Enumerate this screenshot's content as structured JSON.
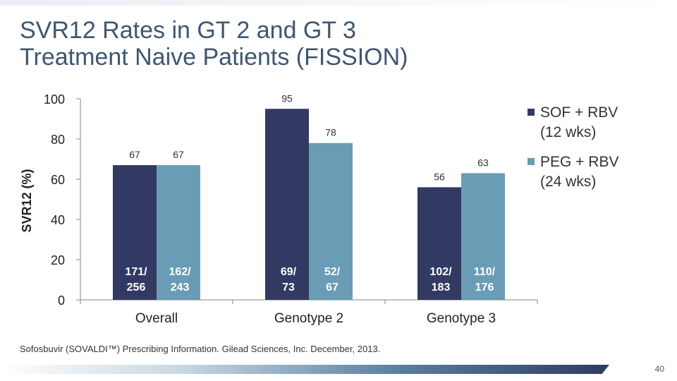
{
  "slide": {
    "title_line1": "SVR12 Rates in GT 2 and GT 3",
    "title_line2": "Treatment Naive Patients (FISSION)",
    "citation": "Sofosbuvir (SOVALDI™) Prescribing Information. Gilead Sciences, Inc. December, 2013.",
    "page_number": "40"
  },
  "chart_data": {
    "type": "bar",
    "categories": [
      "Overall",
      "Genotype 2",
      "Genotype 3"
    ],
    "series": [
      {
        "name": "SOF + RBV (12 wks)",
        "legend_lines": [
          "SOF + RBV",
          "(12 wks)"
        ],
        "color": "#323a64",
        "values": [
          67,
          95,
          56
        ],
        "fraction_labels": [
          [
            "171/",
            "256"
          ],
          [
            "69/",
            "73"
          ],
          [
            "102/",
            "183"
          ]
        ]
      },
      {
        "name": "PEG + RBV (24 wks)",
        "legend_lines": [
          "PEG + RBV",
          "(24 wks)"
        ],
        "color": "#6a9db5",
        "values": [
          67,
          78,
          63
        ],
        "fraction_labels": [
          [
            "162/",
            "243"
          ],
          [
            "52/",
            "67"
          ],
          [
            "110/",
            "176"
          ]
        ]
      }
    ],
    "ylabel": "SVR12 (%)",
    "ylim": [
      0,
      100
    ],
    "yticks": [
      0,
      20,
      40,
      60,
      80,
      100
    ],
    "grid": false,
    "legend_position": "right"
  }
}
